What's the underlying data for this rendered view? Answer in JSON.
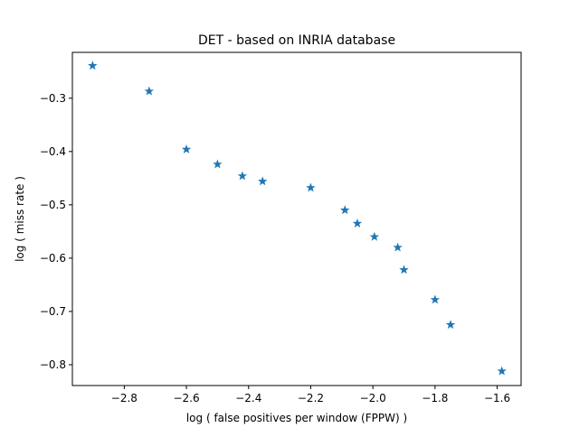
{
  "chart_data": {
    "type": "scatter",
    "title": "DET - based on INRIA database",
    "xlabel": "log ( false positives per window (FPPW) )",
    "ylabel": "log ( miss rate )",
    "xlim": [
      -2.967,
      -1.523
    ],
    "ylim": [
      -0.839,
      -0.214
    ],
    "xticks": [
      -2.8,
      -2.6,
      -2.4,
      -2.2,
      -2.0,
      -1.8,
      -1.6
    ],
    "xtick_labels": [
      "−2.8",
      "−2.6",
      "−2.4",
      "−2.2",
      "−2.0",
      "−1.8",
      "−1.6"
    ],
    "yticks": [
      -0.3,
      -0.4,
      -0.5,
      -0.6,
      -0.7,
      -0.8
    ],
    "ytick_labels": [
      "−0.3",
      "−0.4",
      "−0.5",
      "−0.6",
      "−0.7",
      "−0.8"
    ],
    "grid": false,
    "marker": "star",
    "marker_color": "#1f77b4",
    "points": [
      {
        "x": -2.902,
        "y": -0.239
      },
      {
        "x": -2.72,
        "y": -0.287
      },
      {
        "x": -2.6,
        "y": -0.396
      },
      {
        "x": -2.5,
        "y": -0.424
      },
      {
        "x": -2.42,
        "y": -0.446
      },
      {
        "x": -2.355,
        "y": -0.456
      },
      {
        "x": -2.2,
        "y": -0.468
      },
      {
        "x": -2.09,
        "y": -0.51
      },
      {
        "x": -2.05,
        "y": -0.535
      },
      {
        "x": -1.995,
        "y": -0.56
      },
      {
        "x": -1.92,
        "y": -0.58
      },
      {
        "x": -1.9,
        "y": -0.622
      },
      {
        "x": -1.8,
        "y": -0.678
      },
      {
        "x": -1.75,
        "y": -0.725
      },
      {
        "x": -1.585,
        "y": -0.812
      }
    ]
  }
}
